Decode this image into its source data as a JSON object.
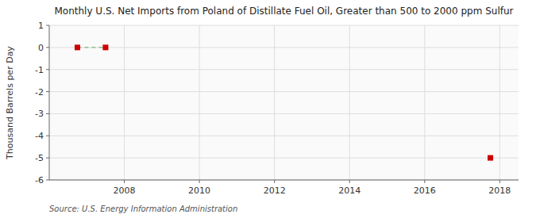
{
  "chart_data": {
    "type": "line",
    "title": "Monthly U.S. Net Imports from Poland of Distillate Fuel Oil, Greater than 500 to 2000 ppm Sulfur",
    "ylabel": "Thousand Barrels per Day",
    "source": "Source: U.S. Energy Information Administration",
    "series": [
      {
        "type": "line",
        "line_style": "dashed",
        "color": "#90c090",
        "x": [
          2006.75,
          2007.5
        ],
        "values": [
          0.0,
          0.0
        ]
      },
      {
        "type": "scatter",
        "marker": "square",
        "color": "#cc0000",
        "x": [
          2006.75,
          2007.5,
          2017.75
        ],
        "values": [
          0.0,
          0.0,
          -5.0
        ]
      }
    ],
    "xlim": [
      2006.0,
      2018.5
    ],
    "ylim": [
      -6,
      1
    ],
    "xticks": [
      2008,
      2010,
      2012,
      2014,
      2016,
      2018
    ],
    "yticks": [
      1,
      0,
      -1,
      -2,
      -3,
      -4,
      -5,
      -6
    ],
    "grid": true
  }
}
